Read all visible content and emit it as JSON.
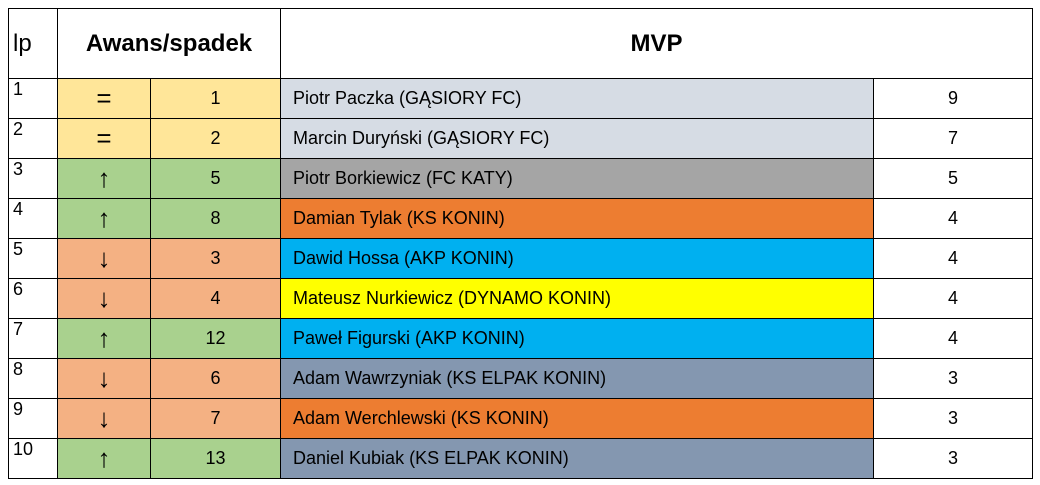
{
  "header": {
    "lp": "lp",
    "change": "Awans/spadek",
    "mvp": "MVP"
  },
  "rows": [
    {
      "lp": "1",
      "trend": "=",
      "prev": "1",
      "player": "Piotr Paczka (GĄSIORY FC)",
      "points": "9",
      "trend_color": "#ffe699",
      "player_color": "#d6dce4"
    },
    {
      "lp": "2",
      "trend": "=",
      "prev": "2",
      "player": "Marcin Duryński (GĄSIORY FC)",
      "points": "7",
      "trend_color": "#ffe699",
      "player_color": "#d6dce4"
    },
    {
      "lp": "3",
      "trend": "↑",
      "prev": "5",
      "player": "Piotr Borkiewicz (FC KATY)",
      "points": "5",
      "trend_color": "#a9d18e",
      "player_color": "#a5a5a5"
    },
    {
      "lp": "4",
      "trend": "↑",
      "prev": "8",
      "player": "Damian Tylak (KS KONIN)",
      "points": "4",
      "trend_color": "#a9d18e",
      "player_color": "#ed7d31"
    },
    {
      "lp": "5",
      "trend": "↓",
      "prev": "3",
      "player": "Dawid Hossa (AKP KONIN)",
      "points": "4",
      "trend_color": "#f4b183",
      "player_color": "#00b0f0"
    },
    {
      "lp": "6",
      "trend": "↓",
      "prev": "4",
      "player": "Mateusz Nurkiewicz (DYNAMO KONIN)",
      "points": "4",
      "trend_color": "#f4b183",
      "player_color": "#ffff00"
    },
    {
      "lp": "7",
      "trend": "↑",
      "prev": "12",
      "player": "Paweł Figurski (AKP KONIN)",
      "points": "4",
      "trend_color": "#a9d18e",
      "player_color": "#00b0f0"
    },
    {
      "lp": "8",
      "trend": "↓",
      "prev": "6",
      "player": "Adam Wawrzyniak (KS ELPAK KONIN)",
      "points": "3",
      "trend_color": "#f4b183",
      "player_color": "#8497b0"
    },
    {
      "lp": "9",
      "trend": "↓",
      "prev": "7",
      "player": "Adam Werchlewski (KS KONIN)",
      "points": "3",
      "trend_color": "#f4b183",
      "player_color": "#ed7d31"
    },
    {
      "lp": "10",
      "trend": "↑",
      "prev": "13",
      "player": "Daniel Kubiak (KS ELPAK KONIN)",
      "points": "3",
      "trend_color": "#a9d18e",
      "player_color": "#8497b0"
    }
  ]
}
